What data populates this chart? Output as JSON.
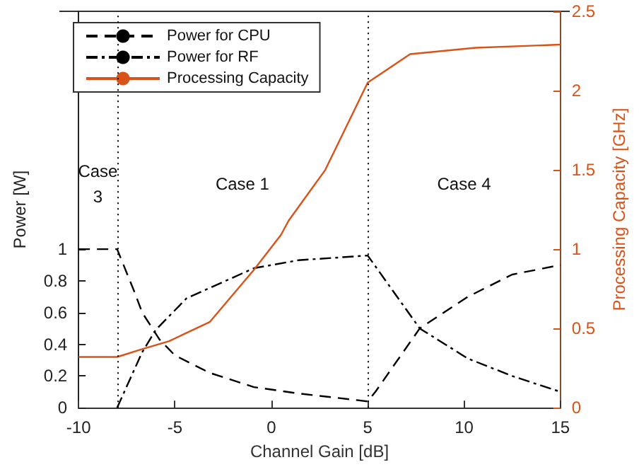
{
  "chart_data": {
    "type": "line",
    "xlabel": "Channel Gain [dB]",
    "ylabel": "Power [W]",
    "y2label": "Processing Capacity [GHz]",
    "xlim": [
      -10,
      15
    ],
    "xticks": [
      -10,
      -5,
      0,
      5,
      10,
      15
    ],
    "ylim": [
      0,
      2.5
    ],
    "yticks": [
      0,
      0.2,
      0.4,
      0.6,
      0.8,
      1
    ],
    "y2lim": [
      0,
      2.5
    ],
    "y2ticks": [
      0,
      0.5,
      1,
      1.5,
      2,
      2.5
    ],
    "grid": false,
    "legend": "top left",
    "marker": "none",
    "series": [
      {
        "name": "Power for CPU",
        "color": "#000000",
        "line_style": "dashed",
        "x": [
          -10,
          -8,
          -7.1,
          -6.7,
          -5.8,
          -5,
          -3.2,
          -0.9,
          1.4,
          5,
          5.4,
          7.7,
          10.2,
          12.5,
          15
        ],
        "values": [
          1,
          1,
          0.73,
          0.6,
          0.43,
          0.33,
          0.22,
          0.13,
          0.09,
          0.04,
          0.1,
          0.5,
          0.7,
          0.84,
          0.9
        ]
      },
      {
        "name": "Power for RF",
        "color": "#000000",
        "line_style": "dashed",
        "x": [
          -8,
          -6.7,
          -6,
          -4.4,
          -0.9,
          1.4,
          5,
          7.7,
          10.2,
          12.5,
          15
        ],
        "values": [
          0,
          0.35,
          0.49,
          0.69,
          0.88,
          0.93,
          0.96,
          0.5,
          0.31,
          0.2,
          0.1
        ]
      },
      {
        "name": "Processing Capacity",
        "color": "#d95319",
        "line_style": "solid",
        "axis": "y2",
        "x": [
          -10,
          -8,
          -6.7,
          -5.3,
          -3.2,
          -0.9,
          0.5,
          0.9,
          2.8,
          5,
          7.2,
          10.6,
          15
        ],
        "values": [
          0.32,
          0.32,
          0.37,
          0.42,
          0.54,
          0.87,
          1.09,
          1.18,
          1.5,
          2.05,
          2.23,
          2.27,
          2.29
        ]
      }
    ],
    "ref_lines": [
      {
        "axis": "x",
        "value": -8,
        "line_style": "dotted",
        "color": "#000000"
      },
      {
        "axis": "x",
        "value": 5,
        "line_style": "dotted",
        "color": "#000000"
      }
    ],
    "annotations": [
      "Case\n3",
      "Case 1",
      "Case 4"
    ]
  }
}
